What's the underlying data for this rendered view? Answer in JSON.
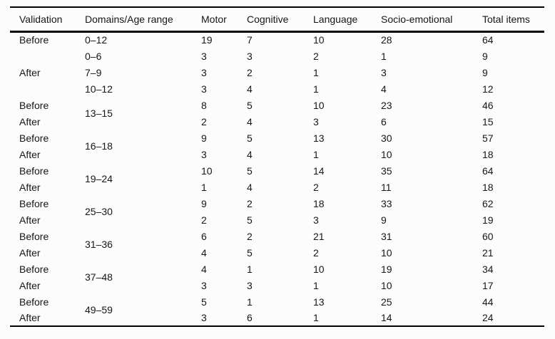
{
  "table": {
    "columns": [
      "Validation",
      "Domains/Age range",
      "Motor",
      "Cognitive",
      "Language",
      "Socio-emotional",
      "Total items"
    ],
    "rows": [
      {
        "validation": "Before",
        "validation_rowspan": 1,
        "age_range": "0–12",
        "age_rowspan": 1,
        "values": [
          "19",
          "7",
          "10",
          "28",
          "64"
        ]
      },
      {
        "validation": "After",
        "validation_rowspan": 3,
        "age_range": "0–6",
        "age_rowspan": 1,
        "values": [
          "3",
          "3",
          "2",
          "1",
          "9"
        ]
      },
      {
        "age_range": "7–9",
        "age_rowspan": 1,
        "values": [
          "3",
          "2",
          "1",
          "3",
          "9"
        ]
      },
      {
        "age_range": "10–12",
        "age_rowspan": 1,
        "values": [
          "3",
          "4",
          "1",
          "4",
          "12"
        ]
      },
      {
        "validation": "Before",
        "validation_rowspan": 1,
        "age_range": "13–15",
        "age_rowspan": 2,
        "values": [
          "8",
          "5",
          "10",
          "23",
          "46"
        ]
      },
      {
        "validation": "After",
        "validation_rowspan": 1,
        "values": [
          "2",
          "4",
          "3",
          "6",
          "15"
        ]
      },
      {
        "validation": "Before",
        "validation_rowspan": 1,
        "age_range": "16–18",
        "age_rowspan": 2,
        "values": [
          "9",
          "5",
          "13",
          "30",
          "57"
        ]
      },
      {
        "validation": "After",
        "validation_rowspan": 1,
        "values": [
          "3",
          "4",
          "1",
          "10",
          "18"
        ]
      },
      {
        "validation": "Before",
        "validation_rowspan": 1,
        "age_range": "19–24",
        "age_rowspan": 2,
        "values": [
          "10",
          "5",
          "14",
          "35",
          "64"
        ]
      },
      {
        "validation": "After",
        "validation_rowspan": 1,
        "values": [
          "1",
          "4",
          "2",
          "11",
          "18"
        ]
      },
      {
        "validation": "Before",
        "validation_rowspan": 1,
        "age_range": "25–30",
        "age_rowspan": 2,
        "values": [
          "9",
          "2",
          "18",
          "33",
          "62"
        ]
      },
      {
        "validation": "After",
        "validation_rowspan": 1,
        "values": [
          "2",
          "5",
          "3",
          "9",
          "19"
        ]
      },
      {
        "validation": "Before",
        "validation_rowspan": 1,
        "age_range": "31–36",
        "age_rowspan": 2,
        "values": [
          "6",
          "2",
          "21",
          "31",
          "60"
        ]
      },
      {
        "validation": "After",
        "validation_rowspan": 1,
        "values": [
          "4",
          "5",
          "2",
          "10",
          "21"
        ]
      },
      {
        "validation": "Before",
        "validation_rowspan": 1,
        "age_range": "37–48",
        "age_rowspan": 2,
        "values": [
          "4",
          "1",
          "10",
          "19",
          "34"
        ]
      },
      {
        "validation": "After",
        "validation_rowspan": 1,
        "values": [
          "3",
          "3",
          "1",
          "10",
          "17"
        ]
      },
      {
        "validation": "Before",
        "validation_rowspan": 1,
        "age_range": "49–59",
        "age_rowspan": 2,
        "values": [
          "5",
          "1",
          "13",
          "25",
          "44"
        ]
      },
      {
        "validation": "After",
        "validation_rowspan": 1,
        "values": [
          "3",
          "6",
          "1",
          "14",
          "24"
        ]
      }
    ],
    "colors": {
      "text": "#161616",
      "rule": "#000000",
      "background": "#fcfcfc"
    }
  }
}
